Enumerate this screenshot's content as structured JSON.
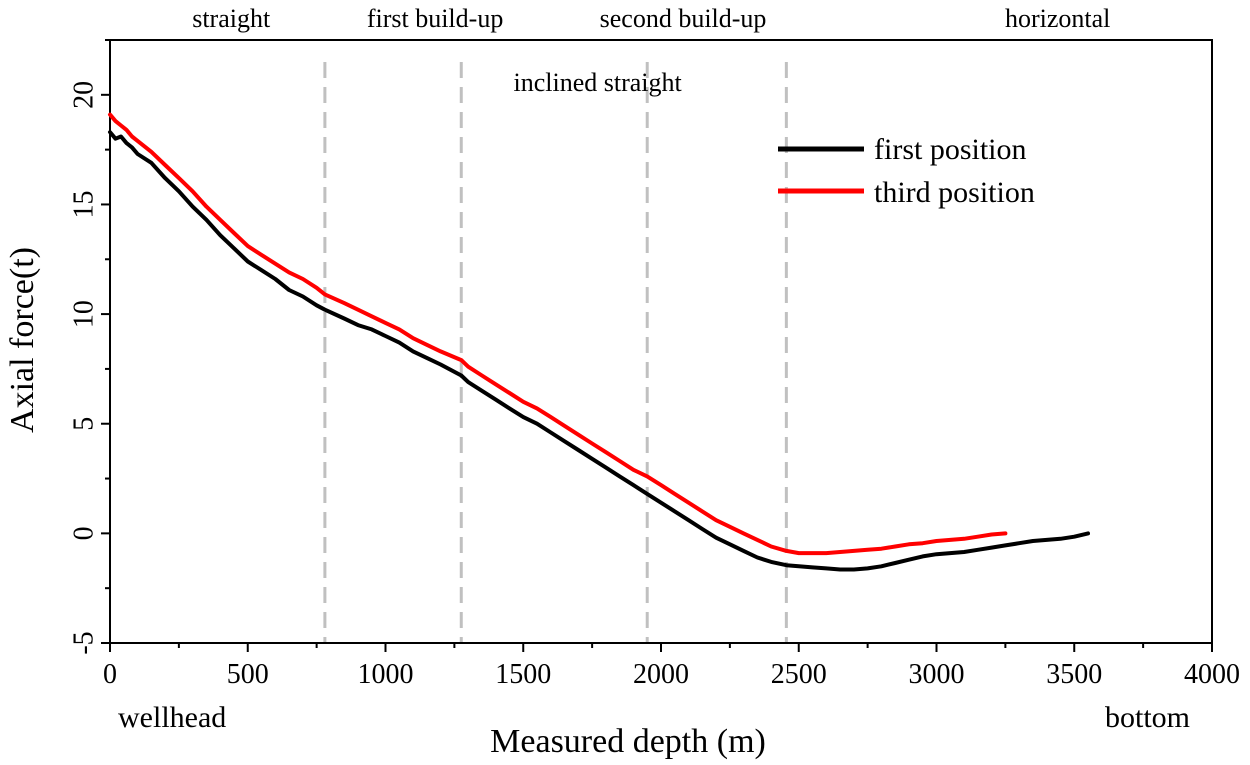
{
  "chart_data": {
    "type": "line",
    "xlabel": "Measured depth (m)",
    "ylabel": "Axial force(t)",
    "xlim": [
      0,
      4000
    ],
    "ylim": [
      -5,
      22.5
    ],
    "xticks": [
      0,
      500,
      1000,
      1500,
      2000,
      2500,
      3000,
      3500,
      4000
    ],
    "yticks": [
      -5,
      0,
      5,
      10,
      15,
      20
    ],
    "x_start_label": "wellhead",
    "x_end_label": "bottom",
    "section_boundaries": [
      780,
      1275,
      1950,
      2455
    ],
    "sections": [
      {
        "label": "straight",
        "x": 440,
        "row": "top"
      },
      {
        "label": "first build-up",
        "x": 1180,
        "row": "top"
      },
      {
        "label": "inclined straight",
        "x": 1770,
        "row": "second"
      },
      {
        "label": "second build-up",
        "x": 2080,
        "row": "top"
      },
      {
        "label": "horizontal",
        "x": 3440,
        "row": "top"
      }
    ],
    "series": [
      {
        "name": "first position",
        "color": "#000000",
        "x": [
          0,
          20,
          40,
          60,
          80,
          100,
          150,
          200,
          250,
          300,
          350,
          400,
          450,
          500,
          550,
          600,
          650,
          700,
          750,
          780,
          850,
          900,
          950,
          1000,
          1050,
          1100,
          1150,
          1200,
          1275,
          1300,
          1350,
          1400,
          1450,
          1500,
          1550,
          1600,
          1650,
          1700,
          1750,
          1800,
          1850,
          1900,
          1950,
          2000,
          2050,
          2100,
          2150,
          2200,
          2250,
          2300,
          2350,
          2400,
          2455,
          2500,
          2550,
          2600,
          2650,
          2700,
          2750,
          2800,
          2850,
          2900,
          2950,
          3000,
          3050,
          3100,
          3150,
          3200,
          3250,
          3300,
          3350,
          3400,
          3450,
          3500,
          3550
        ],
        "values": [
          18.3,
          18.0,
          18.1,
          17.8,
          17.6,
          17.3,
          16.9,
          16.2,
          15.6,
          14.9,
          14.3,
          13.6,
          13.0,
          12.4,
          12.0,
          11.6,
          11.1,
          10.8,
          10.4,
          10.2,
          9.8,
          9.5,
          9.3,
          9.0,
          8.7,
          8.3,
          8.0,
          7.7,
          7.2,
          6.9,
          6.5,
          6.1,
          5.7,
          5.3,
          5.0,
          4.6,
          4.2,
          3.8,
          3.4,
          3.0,
          2.6,
          2.2,
          1.8,
          1.4,
          1.0,
          0.6,
          0.2,
          -0.2,
          -0.5,
          -0.8,
          -1.1,
          -1.3,
          -1.45,
          -1.5,
          -1.55,
          -1.6,
          -1.65,
          -1.65,
          -1.6,
          -1.5,
          -1.35,
          -1.2,
          -1.05,
          -0.95,
          -0.9,
          -0.85,
          -0.75,
          -0.65,
          -0.55,
          -0.45,
          -0.35,
          -0.3,
          -0.25,
          -0.15,
          0.0
        ]
      },
      {
        "name": "third position",
        "color": "#ff0000",
        "x": [
          0,
          20,
          40,
          60,
          80,
          100,
          150,
          200,
          250,
          300,
          350,
          400,
          450,
          500,
          550,
          600,
          650,
          700,
          750,
          780,
          850,
          900,
          950,
          1000,
          1050,
          1100,
          1150,
          1200,
          1275,
          1300,
          1350,
          1400,
          1450,
          1500,
          1550,
          1600,
          1650,
          1700,
          1750,
          1800,
          1850,
          1900,
          1950,
          2000,
          2050,
          2100,
          2150,
          2200,
          2250,
          2300,
          2350,
          2400,
          2455,
          2500,
          2550,
          2600,
          2650,
          2700,
          2750,
          2800,
          2850,
          2900,
          2950,
          3000,
          3050,
          3100,
          3150,
          3200,
          3250
        ],
        "values": [
          19.1,
          18.8,
          18.6,
          18.4,
          18.1,
          17.9,
          17.4,
          16.8,
          16.2,
          15.6,
          14.9,
          14.3,
          13.7,
          13.1,
          12.7,
          12.3,
          11.9,
          11.6,
          11.2,
          10.9,
          10.5,
          10.2,
          9.9,
          9.6,
          9.3,
          8.9,
          8.6,
          8.3,
          7.9,
          7.6,
          7.2,
          6.8,
          6.4,
          6.0,
          5.7,
          5.3,
          4.9,
          4.5,
          4.1,
          3.7,
          3.3,
          2.9,
          2.6,
          2.2,
          1.8,
          1.4,
          1.0,
          0.6,
          0.3,
          0.0,
          -0.3,
          -0.6,
          -0.8,
          -0.9,
          -0.9,
          -0.9,
          -0.85,
          -0.8,
          -0.75,
          -0.7,
          -0.6,
          -0.5,
          -0.45,
          -0.35,
          -0.3,
          -0.25,
          -0.15,
          -0.05,
          0.0
        ]
      }
    ],
    "legend": {
      "placement": "top-right"
    }
  }
}
